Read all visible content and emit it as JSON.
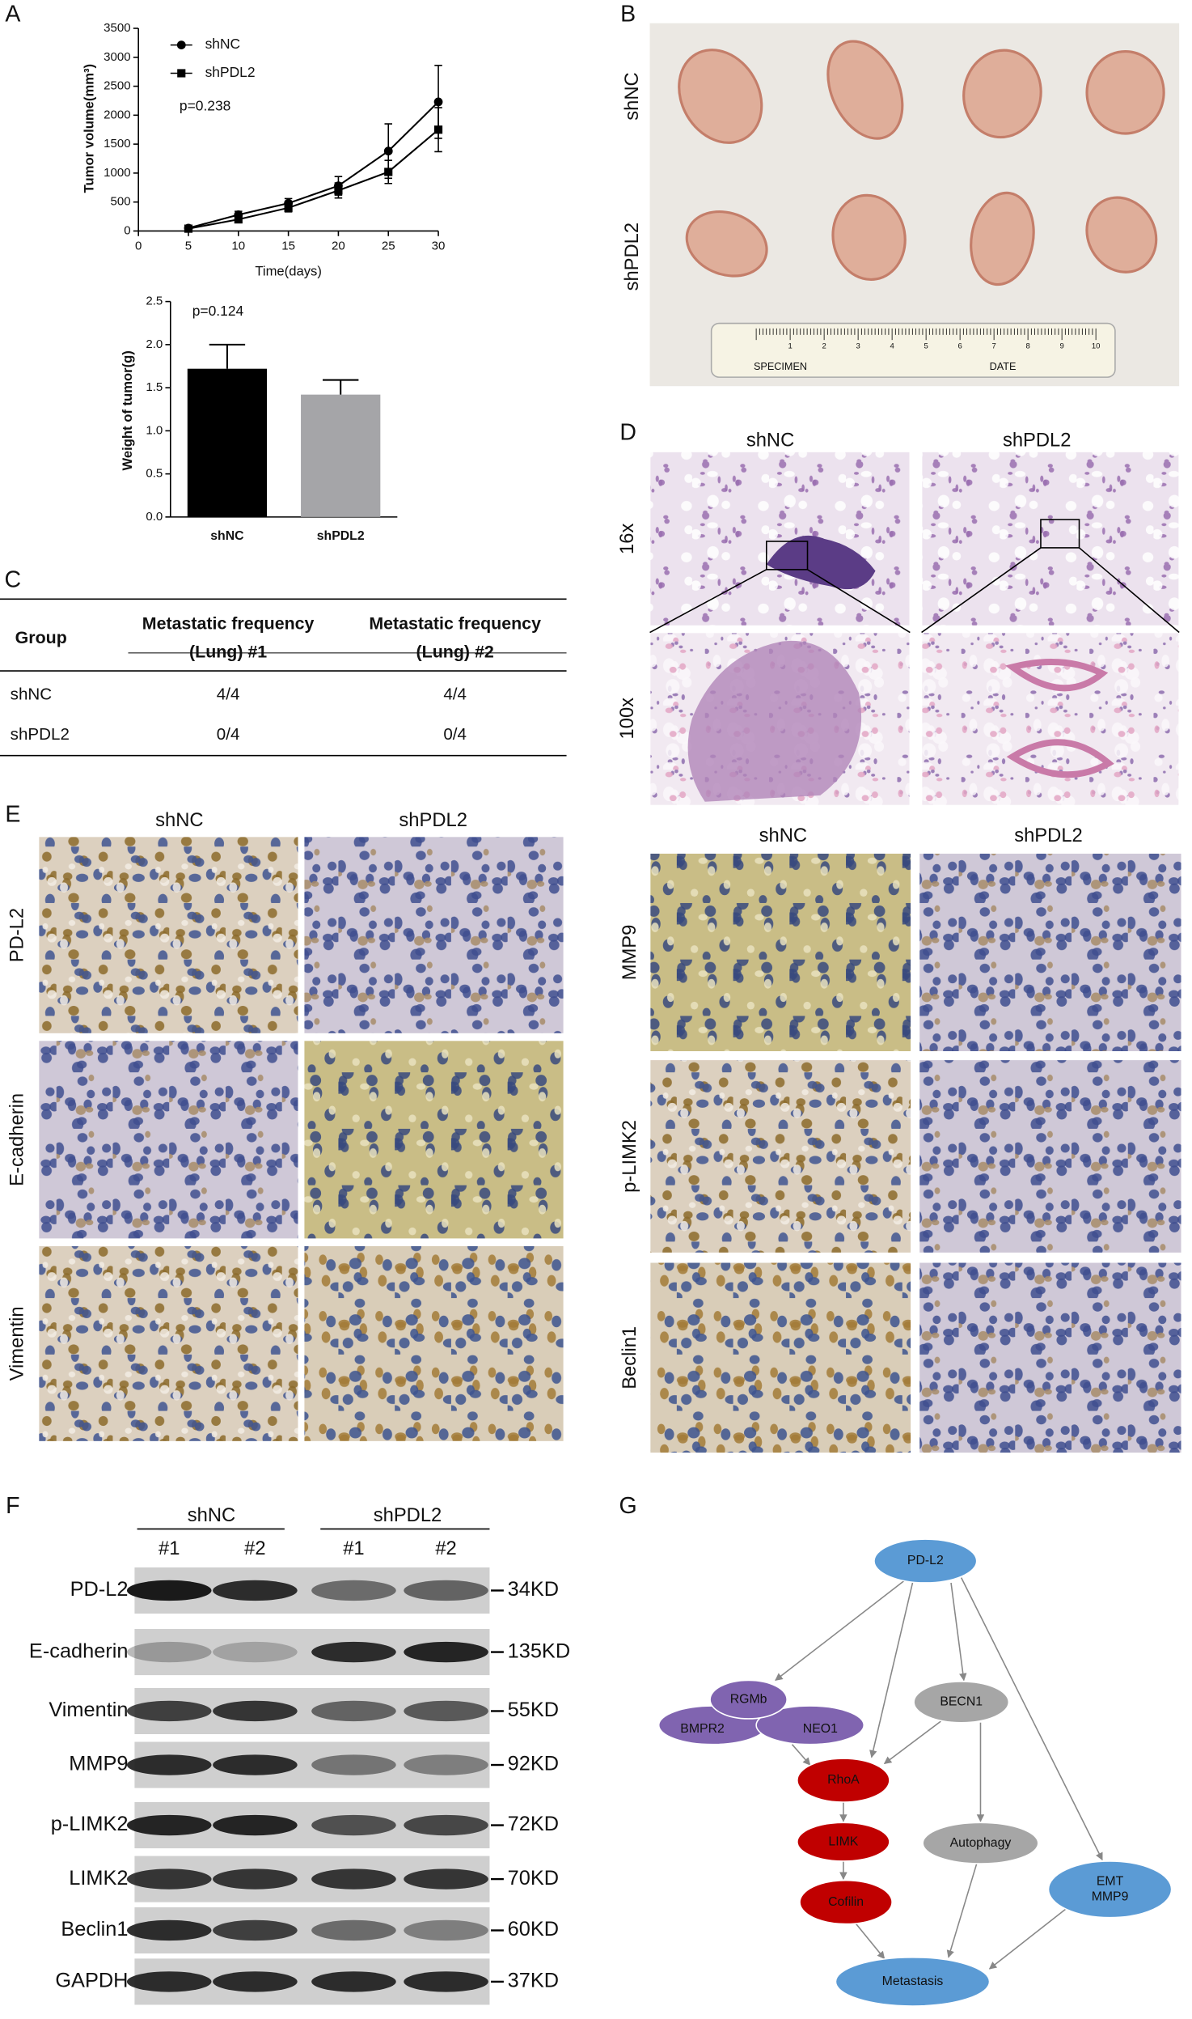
{
  "panel_labels": [
    "A",
    "B",
    "C",
    "D",
    "E",
    "F",
    "G"
  ],
  "chart_data": [
    {
      "type": "line",
      "y_label": "Tumor volume(mm³)",
      "x_label": "Time(days)",
      "annotation": "p=0.238",
      "x": [
        5,
        10,
        15,
        20,
        25,
        30
      ],
      "series": [
        {
          "name": "shNC",
          "color": "#000000",
          "marker": "circle",
          "values": [
            50,
            280,
            480,
            780,
            1380,
            2230
          ],
          "errors": [
            20,
            60,
            80,
            160,
            470,
            630
          ]
        },
        {
          "name": "shPDL2",
          "color": "#000000",
          "marker": "square",
          "values": [
            40,
            200,
            400,
            700,
            1020,
            1750
          ],
          "errors": [
            20,
            50,
            70,
            130,
            200,
            380
          ]
        }
      ],
      "xlim": [
        0,
        30
      ],
      "xticks": [
        0,
        5,
        10,
        15,
        20,
        25,
        30
      ],
      "ylim": [
        0,
        3500
      ],
      "yticks": [
        0,
        500,
        1000,
        1500,
        2000,
        2500,
        3000,
        3500
      ]
    },
    {
      "type": "bar",
      "y_label": "Weight of tumor(g)",
      "annotation": "p=0.124",
      "categories": [
        "shNC",
        "shPDL2"
      ],
      "values": [
        1.72,
        1.42
      ],
      "errors": [
        0.28,
        0.17
      ],
      "colors": [
        "#000000",
        "#a5a5a8"
      ],
      "ylim": [
        0,
        2.5
      ],
      "yticks": [
        {
          "value": 0,
          "label": "0.0"
        },
        0.5,
        {
          "value": 1,
          "label": "1.0"
        },
        1.5,
        {
          "value": 2,
          "label": "2.0"
        },
        2.5
      ]
    }
  ],
  "photos": {
    "rows": [
      "shNC",
      "shPDL2"
    ],
    "ruler": {
      "numbers": [
        "1",
        "2",
        "3",
        "4",
        "5",
        "6",
        "7",
        "8",
        "9",
        "10"
      ],
      "specimen": "SPECIMEN",
      "date": "DATE"
    }
  },
  "table": {
    "group": "Group",
    "columns": [
      [
        "Metastatic frequency",
        "(Lung) #1"
      ],
      [
        "Metastatic frequency",
        "(Lung) #2"
      ]
    ],
    "rows": [
      [
        "shNC",
        "4/4",
        "4/4"
      ],
      [
        "shPDL2",
        "0/4",
        "0/4"
      ]
    ]
  },
  "histology": {
    "columns": [
      "shNC",
      "shPDL2"
    ],
    "rows": [
      "16x",
      "100x"
    ]
  },
  "ihc_d": {
    "columns": [
      "shNC",
      "shPDL2"
    ],
    "rows": [
      "MMP9",
      "p-LIMK2",
      "Beclin1"
    ]
  },
  "ihc_e": {
    "columns": [
      "shNC",
      "shPDL2"
    ],
    "rows": [
      "PD-L2",
      "E-cadherin",
      "Vimentin"
    ]
  },
  "western": {
    "groups": [
      "shNC",
      "shPDL2"
    ],
    "lanes": [
      "#1",
      "#2",
      "#1",
      "#2"
    ],
    "proteins": [
      {
        "name": "PD-L2",
        "size": "34KD"
      },
      {
        "name": "E-cadherin",
        "size": "135KD"
      },
      {
        "name": "Vimentin",
        "size": "55KD"
      },
      {
        "name": "MMP9",
        "size": "92KD"
      },
      {
        "name": "p-LIMK2",
        "size": "72KD"
      },
      {
        "name": "LIMK2",
        "size": "70KD"
      },
      {
        "name": "Beclin1",
        "size": "60KD"
      },
      {
        "name": "GAPDH",
        "size": "37KD"
      }
    ]
  },
  "pathway": {
    "nodes": [
      {
        "lines": [
          "PD-L2"
        ]
      },
      {
        "lines": [
          "RGMb"
        ]
      },
      {
        "lines": [
          "BMPR2"
        ]
      },
      {
        "lines": [
          "NEO1"
        ]
      },
      {
        "lines": [
          "BECN1"
        ]
      },
      {
        "lines": [
          "RhoA"
        ]
      },
      {
        "lines": [
          "LIMK"
        ]
      },
      {
        "lines": [
          "Autophagy"
        ]
      },
      {
        "lines": [
          "Cofilin"
        ]
      },
      {
        "lines": [
          "EMT",
          "MMP9"
        ]
      },
      {
        "lines": [
          "Metastasis"
        ]
      }
    ]
  }
}
